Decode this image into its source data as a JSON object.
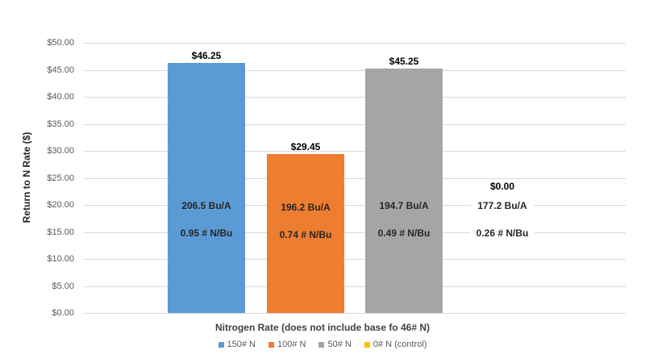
{
  "chart_data": {
    "type": "bar",
    "title": "",
    "xlabel": "Nitrogen Rate (does not include base fo 46# N)",
    "ylabel": "Return to N Rate ($)",
    "ylim": [
      0,
      50
    ],
    "yticks": [
      "$0.00",
      "$5.00",
      "$10.00",
      "$15.00",
      "$20.00",
      "$25.00",
      "$30.00",
      "$35.00",
      "$40.00",
      "$45.00",
      "$50.00"
    ],
    "grid": true,
    "legend_position": "bottom",
    "categories": [
      "150# N",
      "100# N",
      "50# N",
      "0# N (control)"
    ],
    "series": [
      {
        "name": "150# N",
        "color": "#5b9bd5",
        "value": 46.25,
        "value_label": "$46.25",
        "yield_label": "206.5 Bu/A",
        "n_per_bu_label": "0.95 # N/Bu"
      },
      {
        "name": "100# N",
        "color": "#ed7d31",
        "value": 29.45,
        "value_label": "$29.45",
        "yield_label": "196.2 Bu/A",
        "n_per_bu_label": "0.74 # N/Bu"
      },
      {
        "name": "50# N",
        "color": "#a5a5a5",
        "value": 45.25,
        "value_label": "$45.25",
        "yield_label": "194.7 Bu/A",
        "n_per_bu_label": "0.49 # N/Bu"
      },
      {
        "name": "0# N (control)",
        "color": "#ffc000",
        "value": 0.0,
        "value_label": "$0.00",
        "yield_label": "177.2 Bu/A",
        "n_per_bu_label": "0.26 # N/Bu"
      }
    ]
  }
}
